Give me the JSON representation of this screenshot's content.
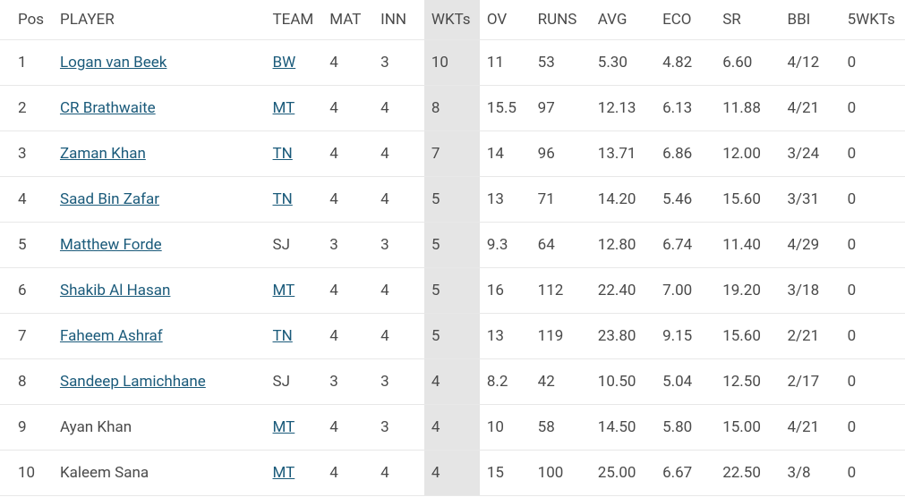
{
  "table": {
    "columns": [
      {
        "key": "pos",
        "label": "Pos",
        "class": "col-pos",
        "highlight": false
      },
      {
        "key": "player",
        "label": "PLAYER",
        "class": "col-player",
        "highlight": false
      },
      {
        "key": "team",
        "label": "TEAM",
        "class": "col-team",
        "highlight": false
      },
      {
        "key": "mat",
        "label": "MAT",
        "class": "col-mat",
        "highlight": false
      },
      {
        "key": "inn",
        "label": "INN",
        "class": "col-inn",
        "highlight": false
      },
      {
        "key": "wkts",
        "label": "WKTs",
        "class": "col-wkts",
        "highlight": true
      },
      {
        "key": "ov",
        "label": "OV",
        "class": "col-ov",
        "highlight": false
      },
      {
        "key": "runs",
        "label": "RUNS",
        "class": "col-runs",
        "highlight": false
      },
      {
        "key": "avg",
        "label": "AVG",
        "class": "col-avg",
        "highlight": false
      },
      {
        "key": "eco",
        "label": "ECO",
        "class": "col-eco",
        "highlight": false
      },
      {
        "key": "sr",
        "label": "SR",
        "class": "col-sr",
        "highlight": false
      },
      {
        "key": "bbi",
        "label": "BBI",
        "class": "col-bbi",
        "highlight": false
      },
      {
        "key": "fivewkts",
        "label": "5WKTs",
        "class": "col-5w",
        "highlight": false
      }
    ],
    "rows": [
      {
        "pos": "1",
        "player": "Logan van Beek",
        "player_link": true,
        "team": "BW",
        "team_link": true,
        "mat": "4",
        "inn": "3",
        "wkts": "10",
        "ov": "11",
        "runs": "53",
        "avg": "5.30",
        "eco": "4.82",
        "sr": "6.60",
        "bbi": "4/12",
        "fivewkts": "0"
      },
      {
        "pos": "2",
        "player": "CR Brathwaite",
        "player_link": true,
        "team": "MT",
        "team_link": true,
        "mat": "4",
        "inn": "4",
        "wkts": "8",
        "ov": "15.5",
        "runs": "97",
        "avg": "12.13",
        "eco": "6.13",
        "sr": "11.88",
        "bbi": "4/21",
        "fivewkts": "0"
      },
      {
        "pos": "3",
        "player": "Zaman Khan",
        "player_link": true,
        "team": "TN",
        "team_link": true,
        "mat": "4",
        "inn": "4",
        "wkts": "7",
        "ov": "14",
        "runs": "96",
        "avg": "13.71",
        "eco": "6.86",
        "sr": "12.00",
        "bbi": "3/24",
        "fivewkts": "0"
      },
      {
        "pos": "4",
        "player": "Saad Bin Zafar",
        "player_link": true,
        "team": "TN",
        "team_link": true,
        "mat": "4",
        "inn": "4",
        "wkts": "5",
        "ov": "13",
        "runs": "71",
        "avg": "14.20",
        "eco": "5.46",
        "sr": "15.60",
        "bbi": "3/31",
        "fivewkts": "0"
      },
      {
        "pos": "5",
        "player": "Matthew Forde",
        "player_link": true,
        "team": "SJ",
        "team_link": false,
        "mat": "3",
        "inn": "3",
        "wkts": "5",
        "ov": "9.3",
        "runs": "64",
        "avg": "12.80",
        "eco": "6.74",
        "sr": "11.40",
        "bbi": "4/29",
        "fivewkts": "0"
      },
      {
        "pos": "6",
        "player": "Shakib Al Hasan",
        "player_link": true,
        "team": "MT",
        "team_link": true,
        "mat": "4",
        "inn": "4",
        "wkts": "5",
        "ov": "16",
        "runs": "112",
        "avg": "22.40",
        "eco": "7.00",
        "sr": "19.20",
        "bbi": "3/18",
        "fivewkts": "0"
      },
      {
        "pos": "7",
        "player": "Faheem Ashraf",
        "player_link": true,
        "team": "TN",
        "team_link": true,
        "mat": "4",
        "inn": "4",
        "wkts": "5",
        "ov": "13",
        "runs": "119",
        "avg": "23.80",
        "eco": "9.15",
        "sr": "15.60",
        "bbi": "2/21",
        "fivewkts": "0"
      },
      {
        "pos": "8",
        "player": "Sandeep Lamichhane",
        "player_link": true,
        "team": "SJ",
        "team_link": false,
        "mat": "3",
        "inn": "3",
        "wkts": "4",
        "ov": "8.2",
        "runs": "42",
        "avg": "10.50",
        "eco": "5.04",
        "sr": "12.50",
        "bbi": "2/17",
        "fivewkts": "0"
      },
      {
        "pos": "9",
        "player": "Ayan Khan",
        "player_link": false,
        "team": "MT",
        "team_link": true,
        "mat": "4",
        "inn": "3",
        "wkts": "4",
        "ov": "10",
        "runs": "58",
        "avg": "14.50",
        "eco": "5.80",
        "sr": "15.00",
        "bbi": "4/21",
        "fivewkts": "0"
      },
      {
        "pos": "10",
        "player": "Kaleem Sana",
        "player_link": false,
        "team": "MT",
        "team_link": true,
        "mat": "4",
        "inn": "4",
        "wkts": "4",
        "ov": "15",
        "runs": "100",
        "avg": "25.00",
        "eco": "6.67",
        "sr": "22.50",
        "bbi": "3/8",
        "fivewkts": "0"
      }
    ],
    "colors": {
      "text": "#4a4a4a",
      "link": "#1a5a7a",
      "highlight_bg": "#e5e5e5",
      "border": "#e8e8e8",
      "background": "#ffffff"
    }
  }
}
